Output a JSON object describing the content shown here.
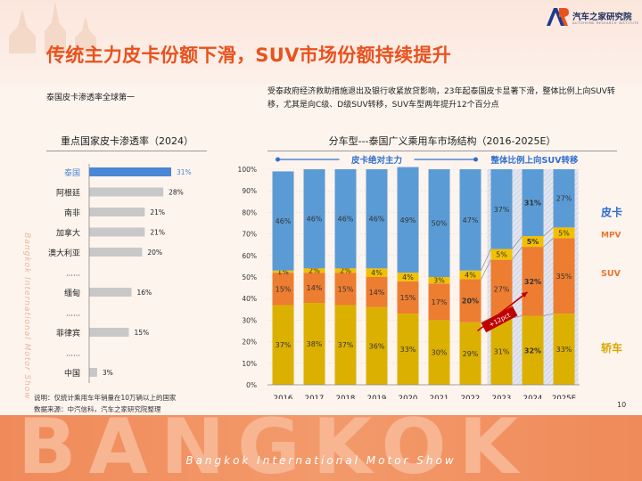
{
  "header": {
    "logo_text": "汽车之家研究院",
    "logo_sub": "AUTOHOME RESEARCH INSTITUTE",
    "title": "传统主力皮卡份额下滑，SUV市场份额持续提升"
  },
  "left": {
    "subtitle": "泰国皮卡渗透率全球第一",
    "chart_title": "重点国家皮卡渗透率（2024）"
  },
  "right": {
    "description": "受泰政府经济救助措施退出及银行收紧放贷影响，23年起泰国皮卡显著下滑，整体比例上向SUV转移，尤其是向C级、D级SUV转移，SUV车型两年提升12个百分点",
    "chart_title": "分车型---泰国广义乘用车市场结构（2016-2025E）"
  },
  "footer": {
    "note_line1": "说明：仅统计乘用车年销量在10万辆以上的国家",
    "note_line2": "数据来源：中汽信科，汽车之家研究院整理",
    "page_number": "10",
    "banner_big": "BANGKOK",
    "banner_text": "Bangkok International Motor Show",
    "side_text": "Bangkok International Motor Show"
  },
  "colors": {
    "title": "#e8521e",
    "pickup": "#5b9bd5",
    "mpv": "#f2c000",
    "suv": "#ed7d31",
    "sedan": "#dcb000",
    "hbar_highlight": "#4a86d6",
    "hbar_gray": "#c8c8c8",
    "legend_pickup": "#2f6fce",
    "legend_mpv_suv": "#e8762e",
    "legend_sedan": "#d8a800"
  },
  "chart_data": [
    {
      "type": "bar",
      "orientation": "horizontal",
      "title": "重点国家皮卡渗透率（2024）",
      "categories": [
        "泰国",
        "阿根廷",
        "南非",
        "加拿大",
        "澳大利亚",
        "……",
        "缅甸",
        "……",
        "菲律宾",
        "……",
        "中国"
      ],
      "values": [
        31,
        28,
        21,
        21,
        20,
        null,
        16,
        null,
        15,
        null,
        3
      ],
      "labels": [
        "31%",
        "28%",
        "21%",
        "21%",
        "20%",
        "",
        "16%",
        "",
        "15%",
        "",
        "3%"
      ],
      "highlight": "泰国",
      "xlim": [
        0,
        31
      ]
    },
    {
      "type": "bar",
      "stacked": true,
      "percent": true,
      "title": "分车型---泰国广义乘用车市场结构（2016-2025E）",
      "categories": [
        "2016",
        "2017",
        "2018",
        "2019",
        "2020",
        "2021",
        "2022",
        "2023",
        "2024",
        "2025E"
      ],
      "ylim": [
        0,
        100
      ],
      "yticks": [
        "0%",
        "10%",
        "20%",
        "30%",
        "40%",
        "50%",
        "60%",
        "70%",
        "80%",
        "90%",
        "100%"
      ],
      "grid": true,
      "series": [
        {
          "name": "轿车",
          "values": [
            37,
            38,
            37,
            36,
            33,
            30,
            29,
            31,
            32,
            33
          ],
          "labels": [
            "37%",
            "38%",
            "37%",
            "36%",
            "33%",
            "30%",
            "29%",
            "31%",
            "32%",
            "33%"
          ]
        },
        {
          "name": "SUV",
          "values": [
            15,
            14,
            15,
            14,
            15,
            17,
            20,
            27,
            32,
            35
          ],
          "labels": [
            "15%",
            "14%",
            "15%",
            "14%",
            "15%",
            "17%",
            "20%",
            "27%",
            "32%",
            "35%"
          ]
        },
        {
          "name": "MPV",
          "values": [
            1,
            2,
            2,
            4,
            4,
            3,
            4,
            5,
            5,
            5
          ],
          "labels": [
            "1%",
            "2%",
            "2%",
            "4%",
            "4%",
            "3%",
            "4%",
            "5%",
            "5%",
            "5%"
          ]
        },
        {
          "name": "皮卡",
          "values": [
            46,
            46,
            46,
            46,
            49,
            50,
            47,
            37,
            31,
            27
          ],
          "labels": [
            "46%",
            "46%",
            "46%",
            "46%",
            "49%",
            "50%",
            "47%",
            "37%",
            "31%",
            "27%"
          ]
        }
      ],
      "bold_categories": [
        "2022",
        "2024"
      ],
      "annotations": {
        "left_band": "皮卡绝对主力",
        "right_band": "整体比例上向SUV转移",
        "arrow_label": "+12pct"
      },
      "legend_labels": [
        "皮卡",
        "MPV",
        "SUV",
        "轿车"
      ]
    }
  ]
}
